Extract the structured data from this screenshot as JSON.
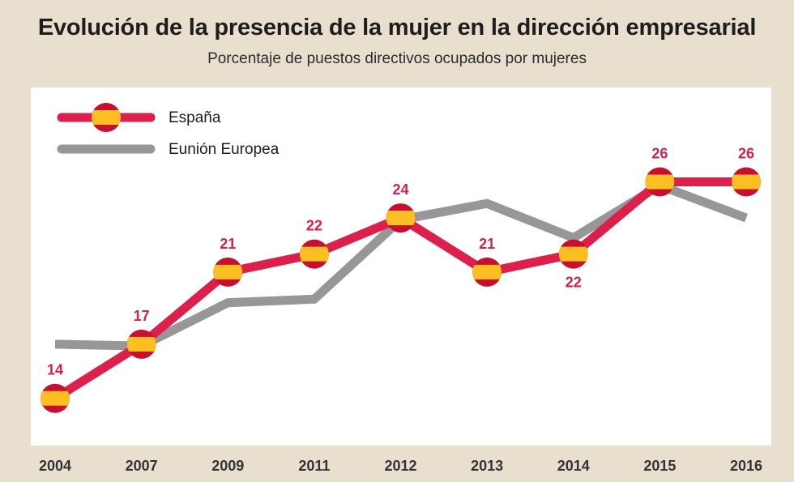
{
  "header": {
    "title": "Evolución de la presencia de la mujer en la dirección empresarial",
    "subtitle": "Porcentaje de puestos directivos ocupados por mujeres"
  },
  "colors": {
    "spain_line": "#dc1f4b",
    "eu_line": "#97979a",
    "flag_red": "#c8102e",
    "flag_yellow": "#fbbf24",
    "plot_bg": "#ffffff",
    "page_bg": "#e8dfcf"
  },
  "chart_data": {
    "type": "line",
    "title": "Evolución de la presencia de la mujer en la dirección empresarial",
    "subtitle": "Porcentaje de puestos directivos ocupados por mujeres",
    "categories": [
      "2004",
      "2007",
      "2009",
      "2011",
      "2012",
      "2013",
      "2014",
      "2015",
      "2016"
    ],
    "ylim": [
      13,
      28
    ],
    "grid": false,
    "legend_position": "top-left",
    "series": [
      {
        "name": "España",
        "values": [
          14,
          17,
          21,
          22,
          24,
          21,
          22,
          26,
          26
        ],
        "labels": [
          "14",
          "17",
          "21",
          "22",
          "24",
          "21",
          "22",
          "26",
          "26"
        ],
        "label_side": [
          "above",
          "above",
          "above",
          "above",
          "above",
          "above",
          "below",
          "above",
          "above"
        ],
        "marker": "spain-flag"
      },
      {
        "name": "Eunión Europea",
        "values": [
          17.0,
          16.9,
          19.3,
          19.5,
          23.9,
          24.8,
          22.9,
          25.8,
          24.0
        ]
      }
    ]
  }
}
